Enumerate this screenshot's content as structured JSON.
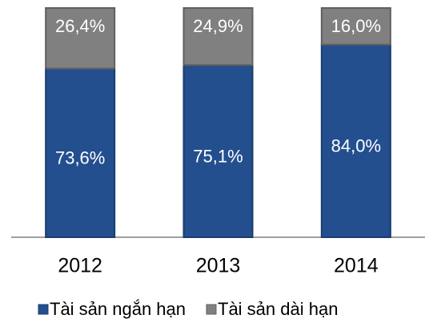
{
  "chart_data": {
    "type": "stacked_bar",
    "categories": [
      "2012",
      "2013",
      "2014"
    ],
    "series": [
      {
        "name": "Tài sản ngắn hạn",
        "color": "#234f8e",
        "values": [
          73.6,
          75.1,
          84.0
        ],
        "value_labels": [
          "73,6%",
          "75,1%",
          "84,0%"
        ]
      },
      {
        "name": "Tài sản dài hạn",
        "color": "#808080",
        "values": [
          26.4,
          24.9,
          16.0
        ],
        "value_labels": [
          "26,4%",
          "24,9%",
          "16,0%"
        ]
      }
    ],
    "legend": "bottom"
  }
}
